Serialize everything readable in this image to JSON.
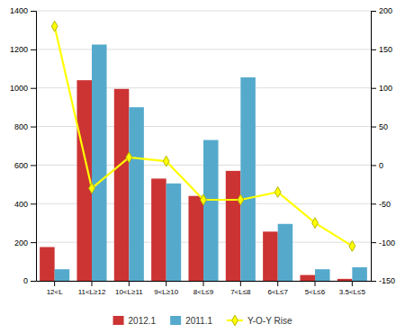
{
  "chart_data": {
    "type": "bar",
    "categories": [
      "12<L",
      "11<L≥12",
      "10<L≥11",
      "9<L≥10",
      "8<L≤9",
      "7<L≤8",
      "6<L≤7",
      "5<L≤6",
      "3.5<L≤5"
    ],
    "series": [
      {
        "name": "2012.1",
        "color": "#CC3333",
        "values": [
          175,
          1040,
          995,
          530,
          440,
          570,
          255,
          30,
          10
        ]
      },
      {
        "name": "2011.1",
        "color": "#55AACC",
        "values": [
          60,
          1225,
          900,
          505,
          730,
          1055,
          295,
          60,
          70
        ]
      },
      {
        "name": "Y-O-Y Rise",
        "color": "#FFFF00",
        "type": "line",
        "axis": "y2",
        "marker": "diamond",
        "values": [
          180,
          -30,
          10,
          5,
          -45,
          -45,
          -35,
          -75,
          -105
        ]
      }
    ],
    "ylim": [
      0,
      1400
    ],
    "yticks": [
      0,
      200,
      400,
      600,
      800,
      1000,
      1200,
      1400
    ],
    "y2lim": [
      -150,
      200
    ],
    "y2ticks": [
      -150,
      -100,
      -50,
      0,
      50,
      100,
      150,
      200
    ],
    "grid": true,
    "legend": "bottom"
  }
}
